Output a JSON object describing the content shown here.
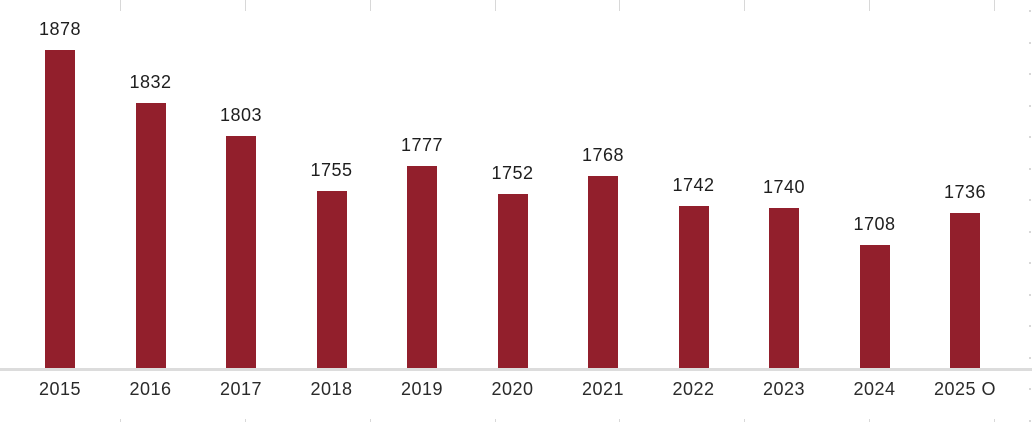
{
  "chart_data": {
    "type": "bar",
    "categories": [
      "2015",
      "2016",
      "2017",
      "2018",
      "2019",
      "2020",
      "2021",
      "2022",
      "2023",
      "2024",
      "2025 O"
    ],
    "values": [
      1878,
      1832,
      1803,
      1755,
      1777,
      1752,
      1768,
      1742,
      1740,
      1708,
      1736
    ],
    "title": "",
    "xlabel": "",
    "ylabel": "",
    "ylim": [
      1600,
      1900
    ],
    "grid": false,
    "legend": false,
    "value_labels_shown": true,
    "bar_color": "#921F2C",
    "axis_line_color": "#dcdcdc",
    "tick_mark_color": "#d8d8d8",
    "label_color": "#1e1e1e"
  }
}
